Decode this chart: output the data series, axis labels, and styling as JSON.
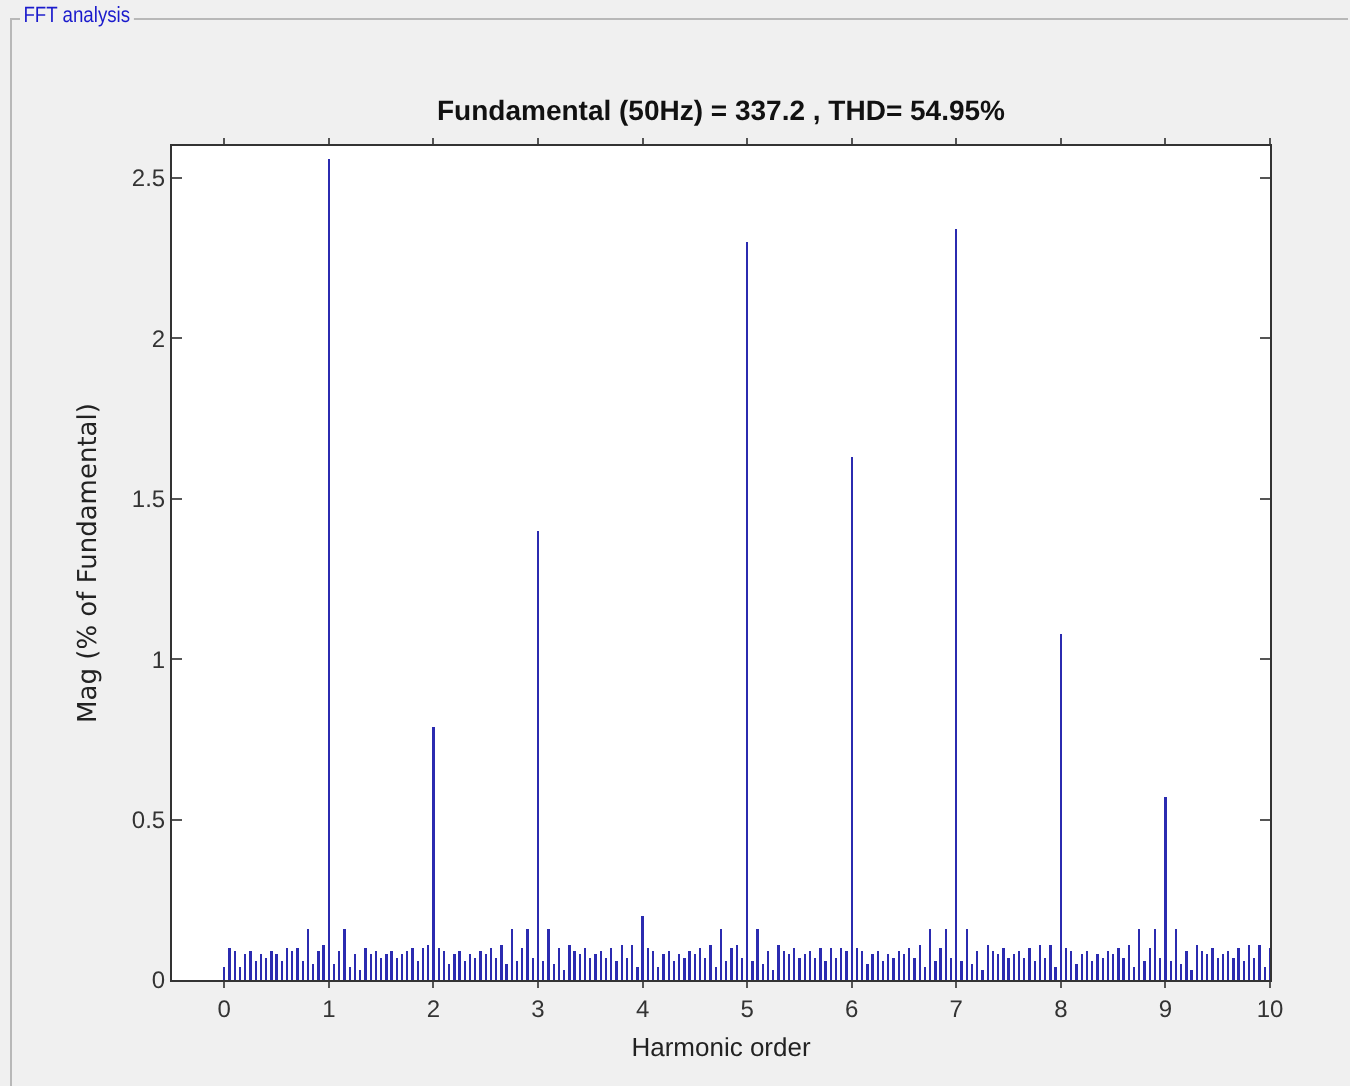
{
  "chart_data": {
    "type": "bar",
    "title": "Fundamental (50Hz) = 337.2 , THD= 54.95%",
    "xlabel": "Harmonic order",
    "ylabel": "Mag (% of Fundamental)",
    "annotations": [
      "FFT analysis"
    ],
    "x": [
      0,
      0.05,
      0.1,
      0.15,
      0.2,
      0.25,
      0.3,
      0.35,
      0.4,
      0.45,
      0.5,
      0.55,
      0.6,
      0.65,
      0.7,
      0.75,
      0.8,
      0.85,
      0.9,
      0.95,
      1,
      1.05,
      1.1,
      1.15,
      1.2,
      1.25,
      1.3,
      1.35,
      1.4,
      1.45,
      1.5,
      1.55,
      1.6,
      1.65,
      1.7,
      1.75,
      1.8,
      1.85,
      1.9,
      1.95,
      2,
      2.05,
      2.1,
      2.15,
      2.2,
      2.25,
      2.3,
      2.35,
      2.4,
      2.45,
      2.5,
      2.55,
      2.6,
      2.65,
      2.7,
      2.75,
      2.8,
      2.85,
      2.9,
      2.95,
      3,
      3.05,
      3.1,
      3.15,
      3.2,
      3.25,
      3.3,
      3.35,
      3.4,
      3.45,
      3.5,
      3.55,
      3.6,
      3.65,
      3.7,
      3.75,
      3.8,
      3.85,
      3.9,
      3.95,
      4,
      4.05,
      4.1,
      4.15,
      4.2,
      4.25,
      4.3,
      4.35,
      4.4,
      4.45,
      4.5,
      4.55,
      4.6,
      4.65,
      4.7,
      4.75,
      4.8,
      4.85,
      4.9,
      4.95,
      5,
      5.05,
      5.1,
      5.15,
      5.2,
      5.25,
      5.3,
      5.35,
      5.4,
      5.45,
      5.5,
      5.55,
      5.6,
      5.65,
      5.7,
      5.75,
      5.8,
      5.85,
      5.9,
      5.95,
      6,
      6.05,
      6.1,
      6.15,
      6.2,
      6.25,
      6.3,
      6.35,
      6.4,
      6.45,
      6.5,
      6.55,
      6.6,
      6.65,
      6.7,
      6.75,
      6.8,
      6.85,
      6.9,
      6.95,
      7,
      7.05,
      7.1,
      7.15,
      7.2,
      7.25,
      7.3,
      7.35,
      7.4,
      7.45,
      7.5,
      7.55,
      7.6,
      7.65,
      7.7,
      7.75,
      7.8,
      7.85,
      7.9,
      7.95,
      8,
      8.05,
      8.1,
      8.15,
      8.2,
      8.25,
      8.3,
      8.35,
      8.4,
      8.45,
      8.5,
      8.55,
      8.6,
      8.65,
      8.7,
      8.75,
      8.8,
      8.85,
      8.9,
      8.95,
      9,
      9.05,
      9.1,
      9.15,
      9.2,
      9.25,
      9.3,
      9.35,
      9.4,
      9.45,
      9.5,
      9.55,
      9.6,
      9.65,
      9.7,
      9.75,
      9.8,
      9.85,
      9.9,
      9.95,
      10
    ],
    "series": [
      {
        "color": "#2b2bb0",
        "values": [
          0.04,
          0.1,
          0.09,
          0.04,
          0.08,
          0.09,
          0.06,
          0.08,
          0.07,
          0.09,
          0.08,
          0.06,
          0.1,
          0.09,
          0.1,
          0.06,
          0.16,
          0.05,
          0.09,
          0.11,
          2.56,
          0.05,
          0.09,
          0.16,
          0.04,
          0.08,
          0.03,
          0.1,
          0.08,
          0.09,
          0.07,
          0.08,
          0.09,
          0.07,
          0.08,
          0.09,
          0.1,
          0.06,
          0.1,
          0.11,
          0.79,
          0.1,
          0.09,
          0.05,
          0.08,
          0.09,
          0.06,
          0.08,
          0.07,
          0.09,
          0.08,
          0.1,
          0.07,
          0.11,
          0.05,
          0.16,
          0.06,
          0.1,
          0.16,
          0.07,
          1.4,
          0.06,
          0.16,
          0.05,
          0.1,
          0.03,
          0.11,
          0.09,
          0.08,
          0.1,
          0.07,
          0.08,
          0.09,
          0.07,
          0.1,
          0.06,
          0.11,
          0.07,
          0.11,
          0.04,
          0.2,
          0.1,
          0.09,
          0.04,
          0.08,
          0.09,
          0.06,
          0.08,
          0.07,
          0.09,
          0.08,
          0.1,
          0.07,
          0.11,
          0.04,
          0.16,
          0.06,
          0.1,
          0.11,
          0.07,
          2.3,
          0.06,
          0.16,
          0.05,
          0.09,
          0.03,
          0.11,
          0.09,
          0.08,
          0.1,
          0.07,
          0.08,
          0.09,
          0.07,
          0.1,
          0.06,
          0.1,
          0.07,
          0.1,
          0.09,
          1.63,
          0.1,
          0.09,
          0.05,
          0.08,
          0.09,
          0.06,
          0.08,
          0.07,
          0.09,
          0.08,
          0.1,
          0.07,
          0.11,
          0.04,
          0.16,
          0.06,
          0.1,
          0.16,
          0.07,
          2.34,
          0.06,
          0.16,
          0.05,
          0.09,
          0.03,
          0.11,
          0.09,
          0.08,
          0.1,
          0.07,
          0.08,
          0.09,
          0.07,
          0.1,
          0.06,
          0.11,
          0.07,
          0.11,
          0.04,
          1.08,
          0.1,
          0.09,
          0.05,
          0.08,
          0.09,
          0.06,
          0.08,
          0.07,
          0.09,
          0.08,
          0.1,
          0.07,
          0.11,
          0.04,
          0.16,
          0.06,
          0.1,
          0.16,
          0.07,
          0.57,
          0.06,
          0.16,
          0.05,
          0.09,
          0.03,
          0.11,
          0.09,
          0.08,
          0.1,
          0.07,
          0.08,
          0.09,
          0.07,
          0.1,
          0.06,
          0.11,
          0.07,
          0.11,
          0.04,
          0.1
        ]
      }
    ],
    "xlim": [
      -0.5,
      10
    ],
    "xticks": [
      0,
      1,
      2,
      3,
      4,
      5,
      6,
      7,
      8,
      9,
      10
    ],
    "ylim": [
      0,
      2.6
    ],
    "yticks": [
      0,
      0.5,
      1,
      1.5,
      2,
      2.5
    ],
    "grid": false
  }
}
